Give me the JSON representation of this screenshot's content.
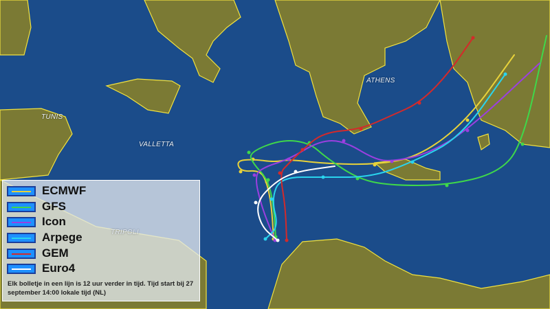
{
  "cities": {
    "tunis": "TUNIS",
    "valletta": "VALLETTA",
    "athens": "ATHENS",
    "tripoli": "TRIPOLI"
  },
  "legend": {
    "items": [
      {
        "label": "ECMWF",
        "color": "#e8d23a"
      },
      {
        "label": "GFS",
        "color": "#3fd84a"
      },
      {
        "label": "Icon",
        "color": "#9b3fe0"
      },
      {
        "label": "Arpege",
        "color": "#2ad4ee"
      },
      {
        "label": "GEM",
        "color": "#d42a2a"
      },
      {
        "label": "Euro4",
        "color": "#ffffff"
      }
    ],
    "note": "Elk bolletje in een lijn is 12 uur verder in tijd. Tijd start bij 27 september 14:00 lokale tijd (NL)"
  },
  "colors": {
    "sea": "#1a4a86",
    "land": "#7d7a2e",
    "border": "#f0e040"
  }
}
